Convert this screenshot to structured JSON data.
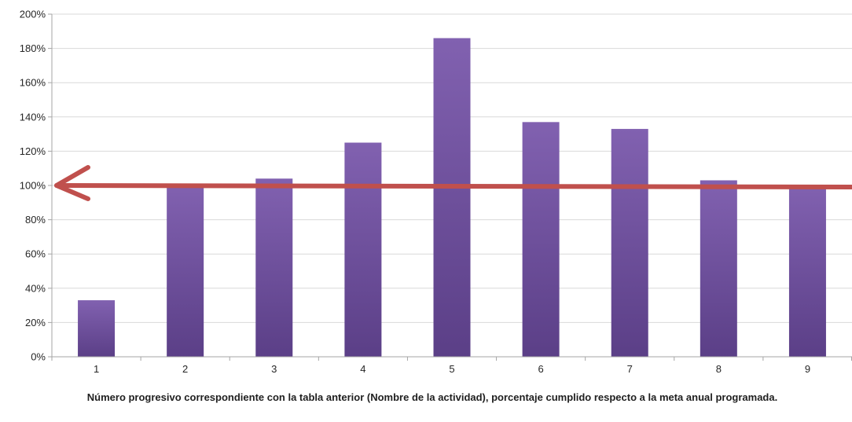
{
  "chart_data": {
    "type": "bar",
    "categories": [
      "1",
      "2",
      "3",
      "4",
      "5",
      "6",
      "7",
      "8",
      "9"
    ],
    "series": [
      {
        "values": [
          33,
          100,
          104,
          125,
          186,
          137,
          133,
          103,
          100
        ]
      }
    ],
    "ylim": [
      0,
      200
    ],
    "yticks": [
      0,
      20,
      40,
      60,
      80,
      100,
      120,
      140,
      160,
      180,
      200
    ],
    "ytick_labels": [
      "0%",
      "20%",
      "40%",
      "60%",
      "80%",
      "100%",
      "120%",
      "140%",
      "160%",
      "180%",
      "200%"
    ],
    "xlabel": "Número progresivo correspondiente con la tabla anterior (Nombre de la actividad), porcentaje cumplido respecto a la meta anual programada.",
    "ylabel": "",
    "title": "",
    "grid": true,
    "reference_line": {
      "value": 100,
      "color": "#c0504d",
      "style": "arrow-left"
    },
    "colors": {
      "bar_top": "#8161b0",
      "bar_bottom": "#5b3f87",
      "grid": "#d9d9d9",
      "axis": "#a6a6a6"
    }
  }
}
